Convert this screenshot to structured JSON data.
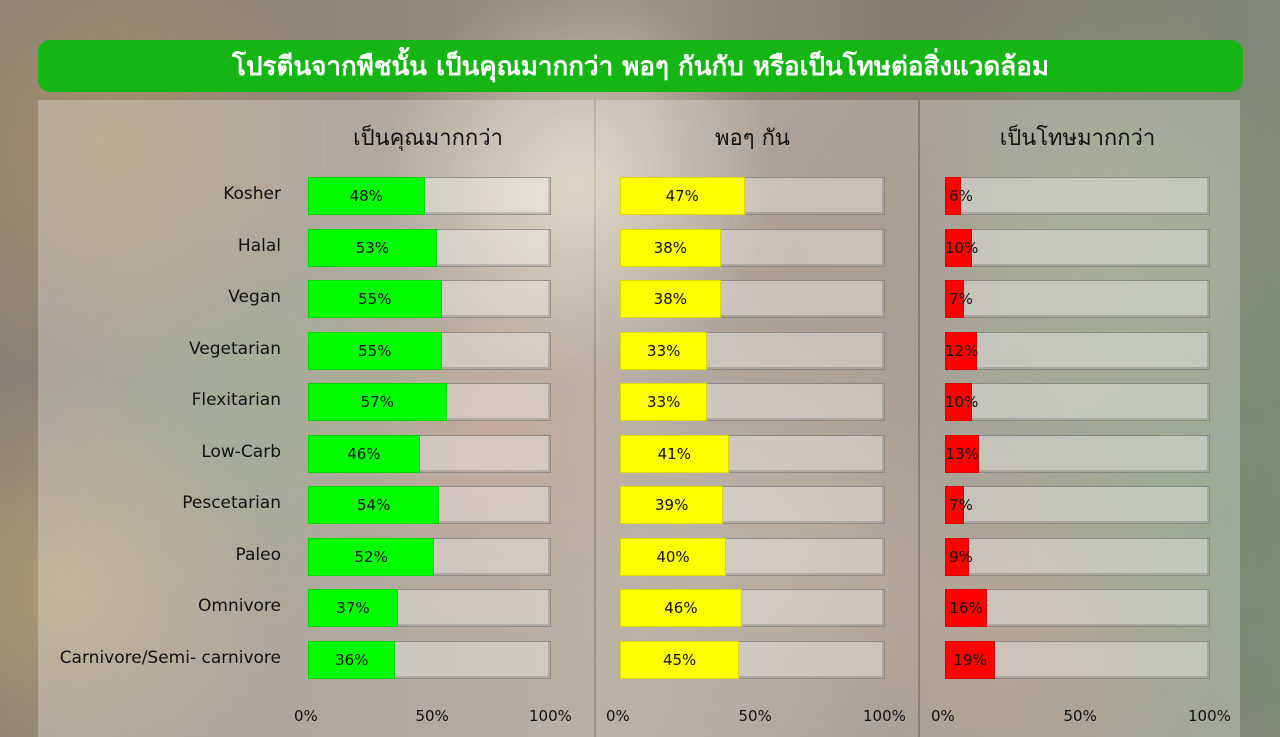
{
  "title": "โปรตีนจากพืชนั้น เป็นคุณมากกว่า พอๆ กันกับ หรือเป็นโทษต่อสิ่งแวดล้อม",
  "chart_data": {
    "type": "bar",
    "orientation": "horizontal",
    "categories": [
      "Kosher",
      "Halal",
      "Vegan",
      "Vegetarian",
      "Flexitarian",
      "Low-Carb",
      "Pescetarian",
      "Paleo",
      "Omnivore",
      "Carnivore/Semi- carnivore"
    ],
    "xlim": [
      0,
      100
    ],
    "x_ticks": [
      "0%",
      "50%",
      "100%"
    ],
    "panels": [
      {
        "title": "เป็นคุณมากกว่า",
        "color": "#00ff00",
        "values": [
          48,
          53,
          55,
          55,
          57,
          46,
          54,
          52,
          37,
          36
        ]
      },
      {
        "title": "พอๆ กัน",
        "color": "#ffff00",
        "values": [
          47,
          38,
          38,
          33,
          33,
          41,
          39,
          40,
          46,
          45
        ]
      },
      {
        "title": "เป็นโทษมากกว่า",
        "color": "#ff0000",
        "values": [
          6,
          10,
          7,
          12,
          10,
          13,
          7,
          9,
          16,
          19
        ]
      }
    ]
  }
}
